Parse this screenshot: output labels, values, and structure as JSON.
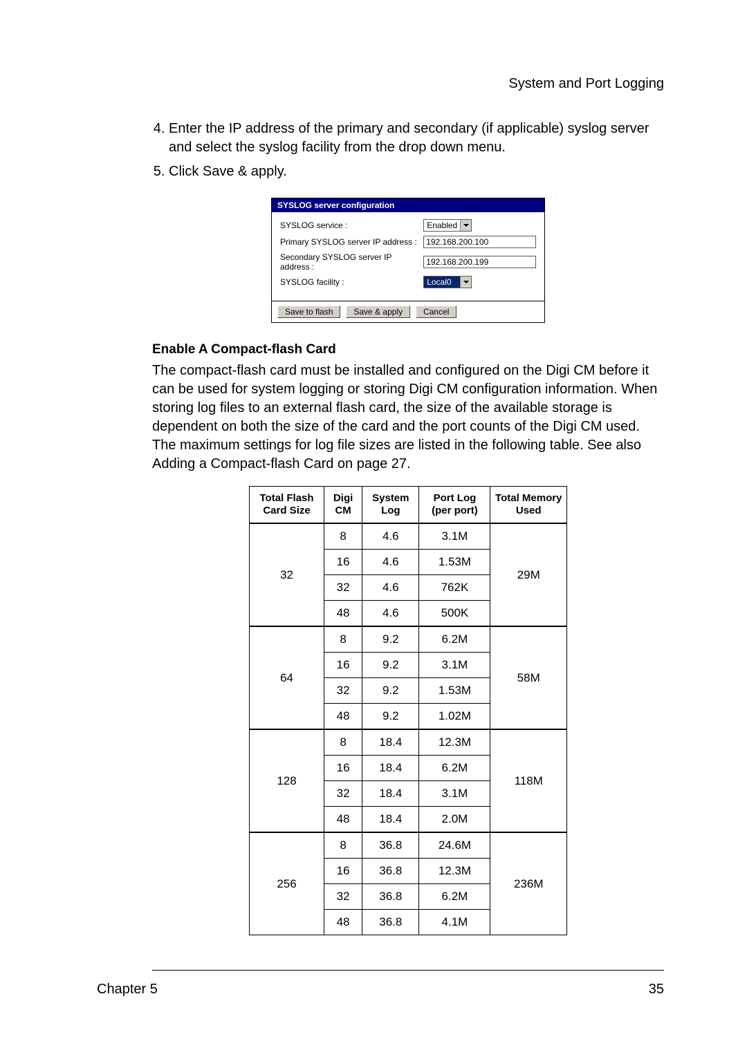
{
  "header": {
    "section_title": "System and Port Logging"
  },
  "steps": {
    "step4": "Enter the IP address of the primary and secondary (if applicable) syslog server and select the syslog facility from the drop down menu.",
    "step5_prefix": "Click ",
    "step5_action": "Save & apply",
    "step5_suffix": "."
  },
  "syslog_panel": {
    "title": "SYSLOG server configuration",
    "rows": {
      "service": {
        "label": "SYSLOG service :",
        "value": "Enabled"
      },
      "primary": {
        "label": "Primary SYSLOG server IP address :",
        "value": "192.168.200.100"
      },
      "secondary": {
        "label": "Secondary SYSLOG server IP address :",
        "value": "192.168.200.199"
      },
      "facility": {
        "label": "SYSLOG facility :",
        "value": "Local0"
      }
    },
    "buttons": {
      "save_flash": "Save to flash",
      "save_apply": "Save & apply",
      "cancel": "Cancel"
    }
  },
  "cf_section": {
    "heading": "Enable A Compact-flash Card",
    "paragraph": "The compact-flash card must be installed and configured on the Digi CM before it can be used for system logging or storing Digi CM configuration information. When storing log files to an external flash card, the size of the available storage is dependent on both the size of the card and the port counts of the Digi CM used. The maximum settings for log file sizes are listed in the following table. See also Adding a Compact-flash Card on page 27."
  },
  "flash_table": {
    "columns": [
      "Total Flash Card Size",
      "Digi CM",
      "System Log",
      "Port Log (per port)",
      "Total Memory Used"
    ],
    "groups": [
      {
        "size": "32",
        "memory": "29M",
        "rows": [
          {
            "digi": "8",
            "sys": "4.6",
            "port": "3.1M"
          },
          {
            "digi": "16",
            "sys": "4.6",
            "port": "1.53M"
          },
          {
            "digi": "32",
            "sys": "4.6",
            "port": "762K"
          },
          {
            "digi": "48",
            "sys": "4.6",
            "port": "500K"
          }
        ]
      },
      {
        "size": "64",
        "memory": "58M",
        "rows": [
          {
            "digi": "8",
            "sys": "9.2",
            "port": "6.2M"
          },
          {
            "digi": "16",
            "sys": "9.2",
            "port": "3.1M"
          },
          {
            "digi": "32",
            "sys": "9.2",
            "port": "1.53M"
          },
          {
            "digi": "48",
            "sys": "9.2",
            "port": "1.02M"
          }
        ]
      },
      {
        "size": "128",
        "memory": "118M",
        "rows": [
          {
            "digi": "8",
            "sys": "18.4",
            "port": "12.3M"
          },
          {
            "digi": "16",
            "sys": "18.4",
            "port": "6.2M"
          },
          {
            "digi": "32",
            "sys": "18.4",
            "port": "3.1M"
          },
          {
            "digi": "48",
            "sys": "18.4",
            "port": "2.0M"
          }
        ]
      },
      {
        "size": "256",
        "memory": "236M",
        "rows": [
          {
            "digi": "8",
            "sys": "36.8",
            "port": "24.6M"
          },
          {
            "digi": "16",
            "sys": "36.8",
            "port": "12.3M"
          },
          {
            "digi": "32",
            "sys": "36.8",
            "port": "6.2M"
          },
          {
            "digi": "48",
            "sys": "36.8",
            "port": "4.1M"
          }
        ]
      }
    ]
  },
  "footer": {
    "chapter": "Chapter 5",
    "page": "35"
  },
  "colors": {
    "panel_header_bg": "#000080",
    "panel_header_fg": "#ffffff",
    "button_bg": "#d4d0c8",
    "select_highlight_bg": "#0a246a",
    "select_highlight_fg": "#ffffff",
    "border": "#000000",
    "text": "#000000",
    "page_bg": "#ffffff"
  }
}
